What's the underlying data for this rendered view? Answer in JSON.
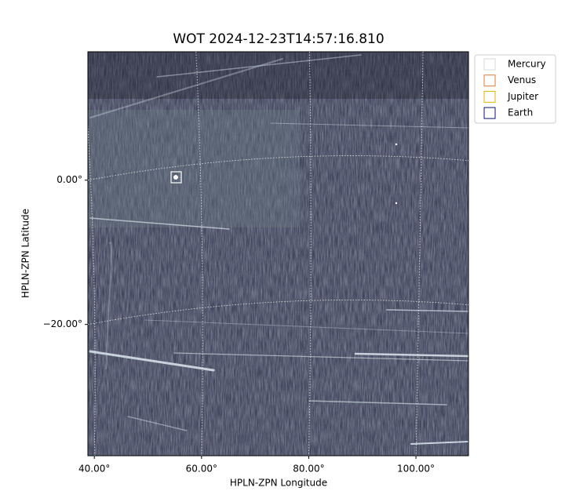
{
  "chart_data": {
    "type": "image",
    "title": "WOT 2024-12-23T14:57:16.810",
    "xlabel": "HPLN-ZPN Longitude",
    "ylabel": "HPLN-ZPN Latitude",
    "xlim": [
      38.8,
      109.8
    ],
    "ylim": [
      -38.2,
      17.8
    ],
    "xticks": [
      {
        "value": 40,
        "label": "40.00°"
      },
      {
        "value": 60,
        "label": "60.00°"
      },
      {
        "value": 80,
        "label": "80.00°"
      },
      {
        "value": 100,
        "label": "100.00°"
      }
    ],
    "yticks": [
      {
        "value": 0,
        "label": "0.00°"
      },
      {
        "value": -20,
        "label": "−20.00°"
      }
    ],
    "grid": true,
    "legend_position": "outside-upper-right",
    "legend": [
      {
        "name": "Mercury",
        "color": "#d9d9d9"
      },
      {
        "name": "Venus",
        "color": "#e07b39"
      },
      {
        "name": "Jupiter",
        "color": "#e0b400"
      },
      {
        "name": "Earth",
        "color": "#101070"
      }
    ]
  }
}
